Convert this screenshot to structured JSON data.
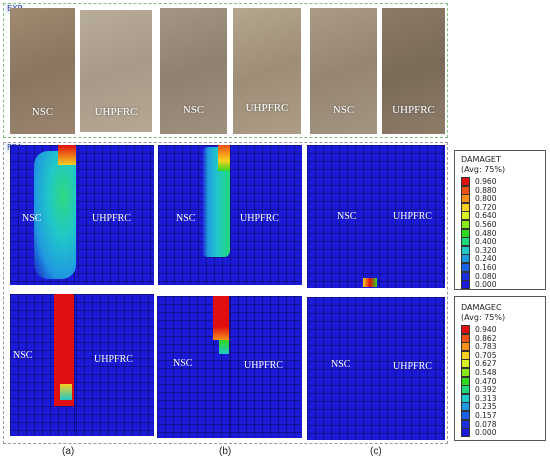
{
  "sections": {
    "exp": "EXP",
    "fea": "FEA"
  },
  "photos": [
    {
      "label": "NSC"
    },
    {
      "label": "UHPFRC"
    },
    {
      "label": "NSC"
    },
    {
      "label": "UHPFRC"
    },
    {
      "label": "NSC"
    },
    {
      "label": "UHPFRC"
    }
  ],
  "fea_top": [
    {
      "label": "NSC"
    },
    {
      "label": "UHPFRC"
    },
    {
      "label": "NSC"
    },
    {
      "label": "UHPFRC"
    },
    {
      "label": "NSC"
    },
    {
      "label": "UHPFRC"
    }
  ],
  "fea_bottom": [
    {
      "label": "NSC"
    },
    {
      "label": "UHPFRC"
    },
    {
      "label": "NSC"
    },
    {
      "label": "UHPFRC"
    },
    {
      "label": "NSC"
    },
    {
      "label": "UHPFRC"
    }
  ],
  "legend_tension": {
    "title": "DAMAGET",
    "subtitle": "(Avg: 75%)",
    "values": [
      "0.960",
      "0.880",
      "0.800",
      "0.720",
      "0.640",
      "0.560",
      "0.480",
      "0.400",
      "0.320",
      "0.240",
      "0.160",
      "0.080",
      "0.000"
    ]
  },
  "legend_compression": {
    "title": "DAMAGEC",
    "subtitle": "(Avg: 75%)",
    "values": [
      "0.940",
      "0.862",
      "0.783",
      "0.705",
      "0.627",
      "0.548",
      "0.470",
      "0.392",
      "0.313",
      "0.235",
      "0.157",
      "0.078",
      "0.000"
    ]
  },
  "legend_colors": [
    "#e01010",
    "#f05010",
    "#f89018",
    "#f8d020",
    "#d8f020",
    "#88e818",
    "#30d820",
    "#20d878",
    "#20c8c8",
    "#2098e0",
    "#1a60e8",
    "#1a30dc",
    "#1a1ad8"
  ],
  "captions": [
    "(a)",
    "(b)",
    "(c)"
  ]
}
